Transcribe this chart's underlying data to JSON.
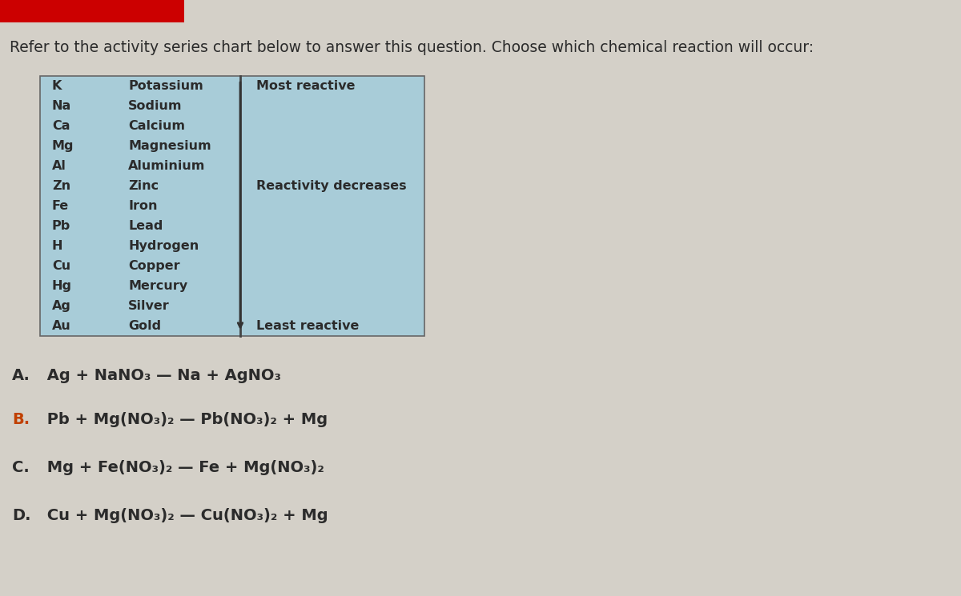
{
  "title": "Refer to the activity series chart below to answer this question. Choose which chemical reaction will occur:",
  "title_fontsize": 13.5,
  "background_color": "#d4d0c8",
  "table_bg": "#a8ccd8",
  "table_border": "#666666",
  "elements": [
    "K",
    "Na",
    "Ca",
    "Mg",
    "Al",
    "Zn",
    "Fe",
    "Pb",
    "H",
    "Cu",
    "Hg",
    "Ag",
    "Au"
  ],
  "names": [
    "Potassium",
    "Sodium",
    "Calcium",
    "Magnesium",
    "Aluminium",
    "Zinc",
    "Iron",
    "Lead",
    "Hydrogen",
    "Copper",
    "Mercury",
    "Silver",
    "Gold"
  ],
  "label_most_reactive": "Most reactive",
  "label_reactivity_decreases": "Reactivity decreases",
  "label_least_reactive": "Least reactive",
  "answer_A_letter": "A.",
  "answer_A_text": " Ag + NaNO₃ — Na + AgNO₃",
  "answer_B_letter": "B.",
  "answer_B_text": " Pb + Mg(NO₃)₂ — Pb(NO₃)₂ + Mg",
  "answer_C_letter": "C.",
  "answer_C_text": " Mg + Fe(NO₃)₂ — Fe + Mg(NO₃)₂",
  "answer_D_letter": "D.",
  "answer_D_text": " Cu + Mg(NO₃)₂ — Cu(NO₃)₂ + Mg",
  "text_color": "#2b2b2b",
  "letter_color_A": "#2b2b2b",
  "letter_color_B": "#c04000",
  "letter_color_C": "#2b2b2b",
  "letter_color_D": "#2b2b2b",
  "answer_fontsize": 14,
  "table_fontsize": 11.5
}
